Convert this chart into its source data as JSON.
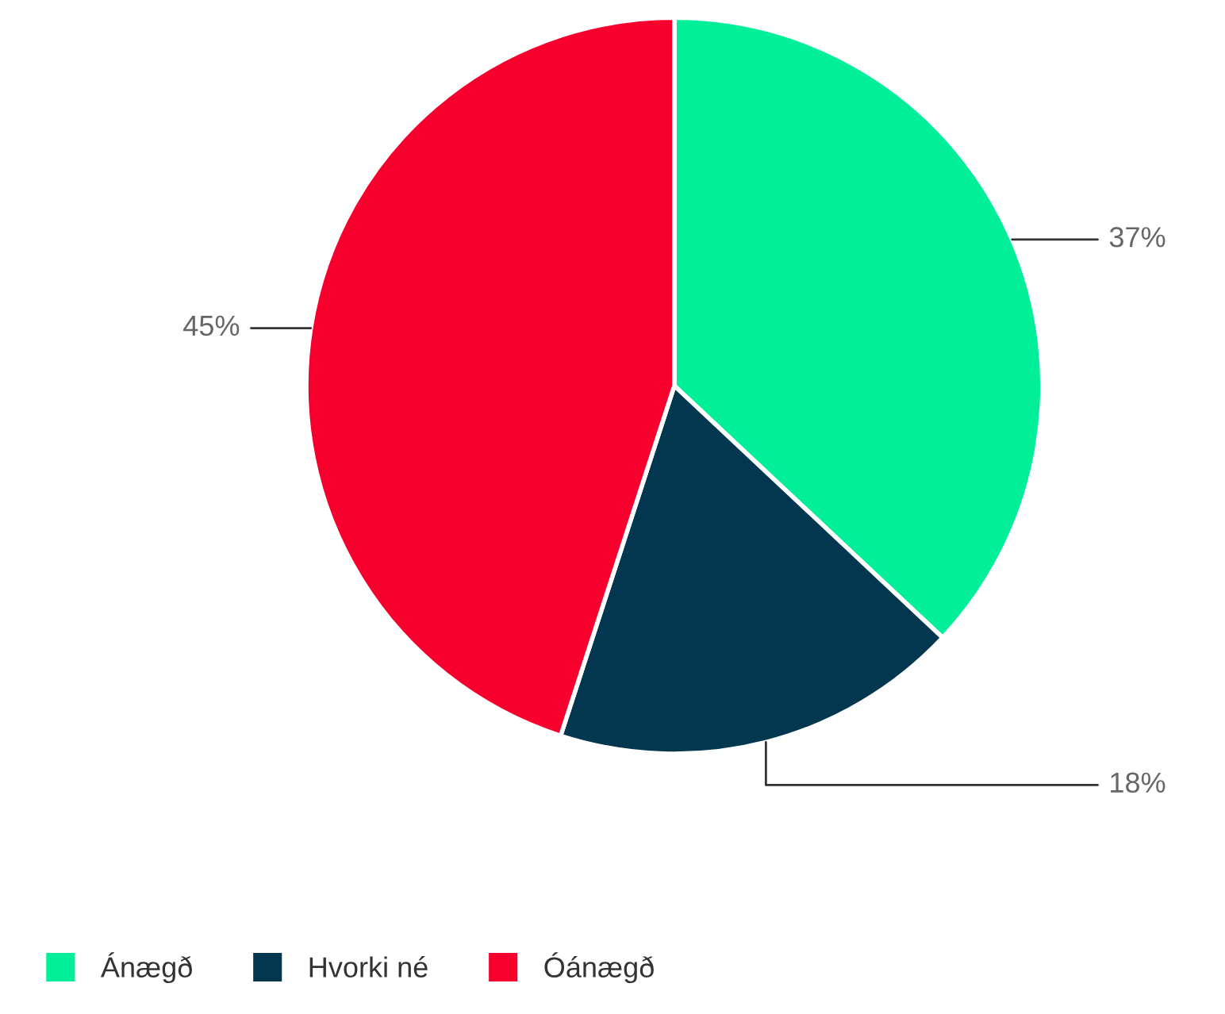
{
  "chart_data": {
    "type": "pie",
    "categories": [
      "Ánægð",
      "Hvorki né",
      "Óánægð"
    ],
    "values": [
      37,
      18,
      45
    ],
    "colors": [
      "#00ef98",
      "#03364f",
      "#f7002e"
    ],
    "value_labels": [
      "37%",
      "18%",
      "45%"
    ],
    "legend": "bottom left"
  }
}
